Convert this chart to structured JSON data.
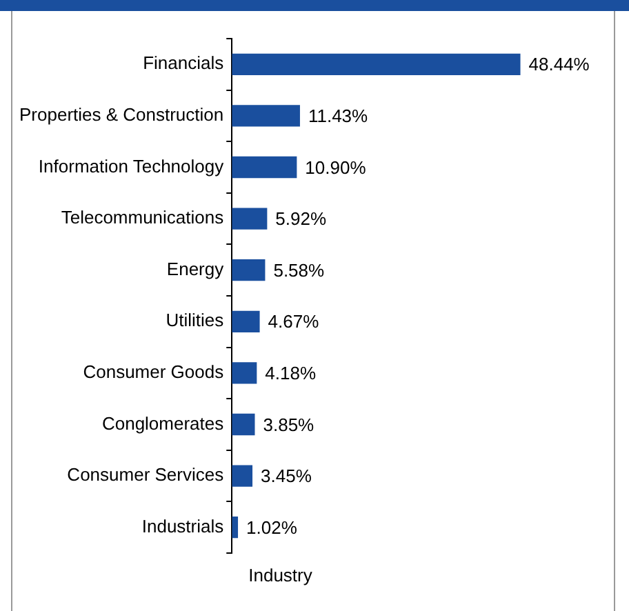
{
  "chart_data": {
    "type": "bar",
    "orientation": "horizontal",
    "categories": [
      "Financials",
      "Properties & Construction",
      "Information Technology",
      "Telecommunications",
      "Energy",
      "Utilities",
      "Consumer Goods",
      "Conglomerates",
      "Consumer Services",
      "Industrials"
    ],
    "values": [
      48.44,
      11.43,
      10.9,
      5.92,
      5.58,
      4.67,
      4.18,
      3.85,
      3.45,
      1.02
    ],
    "value_labels": [
      "48.44%",
      "11.43%",
      "10.90%",
      "5.92%",
      "5.58%",
      "4.67%",
      "4.18%",
      "3.85%",
      "3.45%",
      "1.02%"
    ],
    "color": "#1a4f9e",
    "tick_labels": "y",
    "grid": false,
    "legend": false,
    "annotations": [
      "Industry"
    ]
  }
}
